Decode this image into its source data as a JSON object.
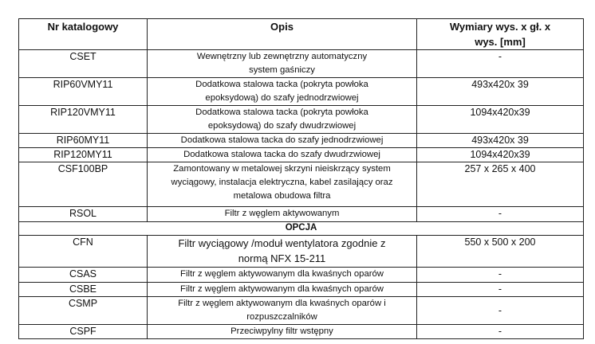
{
  "header": {
    "col1": "Nr katalogowy",
    "col2": "Opis",
    "col3": "Wymiary wys. x gł. x wys. [mm]"
  },
  "rows": [
    {
      "code": "CSET",
      "desc": "Wewnętrzny lub zewnętrzny automatyczny system gaśniczy",
      "dim": "-"
    },
    {
      "code": "RIP60VMY11",
      "desc": "Dodatkowa  stalowa tacka (pokryta powłoka epoksydową) do szafy jednodrzwiowej",
      "dim": "493x420x 39"
    },
    {
      "code": "RIP120VMY11",
      "desc": "Dodatkowa  stalowa tacka (pokryta powłoka epoksydową) do szafy dwudrzwiowej",
      "dim": "1094x420x39"
    },
    {
      "code": "RIP60MY11",
      "desc": "Dodatkowa  stalowa tacka do szafy jednodrzwiowej",
      "dim": "493x420x 39"
    },
    {
      "code": "RIP120MY11",
      "desc": "Dodatkowa  stalowa tacka do szafy dwudrzwiowej",
      "dim": "1094x420x39"
    },
    {
      "code": "CSF100BP",
      "desc": "Zamontowany w metalowej skrzyni nieiskrzący system wyciągowy, instalacja elektryczna, kabel zasilający oraz metalowa obudowa filtra",
      "dim": "257 x 265 x 400"
    },
    {
      "code": "RSOL",
      "desc": "Filtr z węglem aktywowanym",
      "dim": "-"
    }
  ],
  "option_label": "OPCJA",
  "option_rows": [
    {
      "code": "CFN",
      "desc": "Filtr wyciągowy /moduł wentylatora zgodnie z normą NFX 15-211",
      "dim": "550 x 500 x 200"
    },
    {
      "code": "CSAS",
      "desc": "Filtr z węglem aktywowanym dla kwaśnych oparów",
      "dim": "-"
    },
    {
      "code": "CSBE",
      "desc": "Filtr z węglem aktywowanym dla kwaśnych oparów",
      "dim": "-"
    },
    {
      "code": "CSMP",
      "desc": "Filtr z węglem aktywowanym dla kwaśnych oparów i rozpuszczalników",
      "dim": "-"
    },
    {
      "code": "CSPF",
      "desc": "Przeciwpylny filtr wstępny",
      "dim": "-"
    }
  ]
}
